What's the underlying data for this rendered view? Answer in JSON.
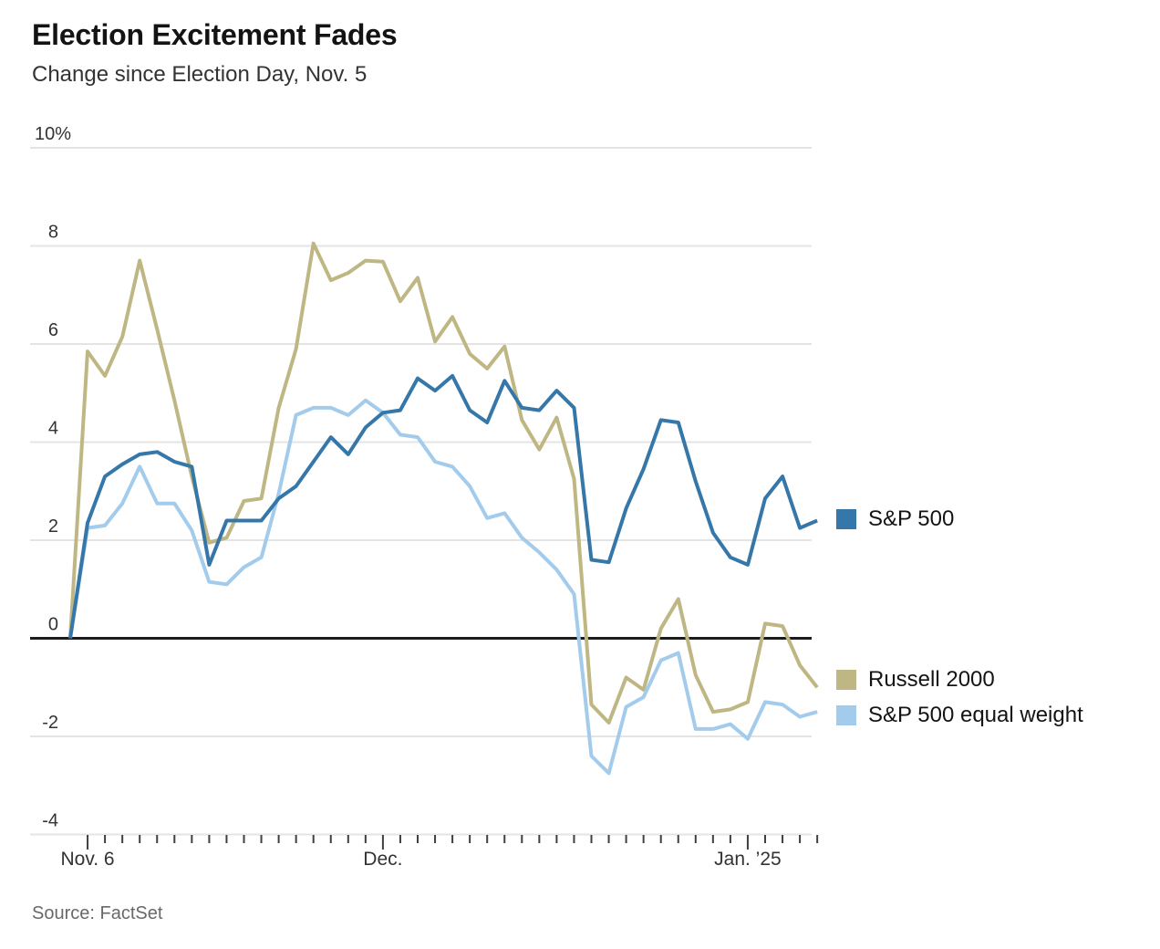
{
  "chart_data": {
    "type": "line",
    "title": "Election Excitement Fades",
    "subtitle": "Change since Election Day, Nov. 5",
    "source_note": "Source: FactSet",
    "x_dates": [
      "Nov. 5",
      "Nov. 6",
      "Nov. 7",
      "Nov. 8",
      "Nov. 11",
      "Nov. 12",
      "Nov. 13",
      "Nov. 14",
      "Nov. 15",
      "Nov. 18",
      "Nov. 19",
      "Nov. 20",
      "Nov. 21",
      "Nov. 22",
      "Nov. 25",
      "Nov. 26",
      "Nov. 27",
      "Nov. 29",
      "Dec. 2",
      "Dec. 3",
      "Dec. 4",
      "Dec. 5",
      "Dec. 6",
      "Dec. 9",
      "Dec. 10",
      "Dec. 11",
      "Dec. 12",
      "Dec. 13",
      "Dec. 16",
      "Dec. 17",
      "Dec. 18",
      "Dec. 19",
      "Dec. 20",
      "Dec. 23",
      "Dec. 24",
      "Dec. 26",
      "Dec. 27",
      "Dec. 30",
      "Dec. 31",
      "Jan. 2",
      "Jan. 3",
      "Jan. 6",
      "Jan. 7",
      "Jan. 8"
    ],
    "series": [
      {
        "name": "S&P 500",
        "color": "#3577A8",
        "values": [
          0,
          2.35,
          3.3,
          3.55,
          3.75,
          3.8,
          3.6,
          3.5,
          1.5,
          2.4,
          2.4,
          2.4,
          2.85,
          3.1,
          3.6,
          4.1,
          3.75,
          4.3,
          4.6,
          4.65,
          5.3,
          5.05,
          5.35,
          4.65,
          4.4,
          5.25,
          4.7,
          4.65,
          5.05,
          4.7,
          1.6,
          1.55,
          2.65,
          3.45,
          4.45,
          4.4,
          3.2,
          2.15,
          1.65,
          1.5,
          2.85,
          3.3,
          2.25,
          2.4
        ]
      },
      {
        "name": "Russell 2000",
        "color": "#BFB783",
        "values": [
          0,
          5.85,
          5.35,
          6.15,
          7.7,
          6.3,
          4.85,
          3.3,
          1.95,
          2.05,
          2.8,
          2.85,
          4.7,
          5.9,
          8.05,
          7.3,
          7.45,
          7.7,
          7.68,
          6.87,
          7.35,
          6.05,
          6.55,
          5.8,
          5.5,
          5.95,
          4.45,
          3.85,
          4.5,
          3.25,
          -1.35,
          -1.72,
          -0.8,
          -1.05,
          0.2,
          0.8,
          -0.75,
          -1.5,
          -1.45,
          -1.3,
          0.3,
          0.25,
          -0.55,
          -1.0
        ]
      },
      {
        "name": "S&P 500 equal weight",
        "color": "#A2CBEC",
        "values": [
          0,
          2.25,
          2.3,
          2.75,
          3.5,
          2.75,
          2.75,
          2.2,
          1.15,
          1.1,
          1.45,
          1.65,
          2.95,
          4.55,
          4.7,
          4.7,
          4.55,
          4.85,
          4.6,
          4.15,
          4.1,
          3.6,
          3.5,
          3.1,
          2.45,
          2.55,
          2.05,
          1.75,
          1.4,
          0.9,
          -2.4,
          -2.75,
          -1.4,
          -1.2,
          -0.45,
          -0.3,
          -1.85,
          -1.85,
          -1.75,
          -2.05,
          -1.3,
          -1.35,
          -1.6,
          -1.5
        ]
      }
    ],
    "ylim": [
      -4,
      10
    ],
    "yticks": {
      "values": [
        10,
        8,
        6,
        4,
        2,
        0,
        -2,
        -4
      ],
      "labels": [
        "10%",
        "8",
        "6",
        "4",
        "2",
        "0",
        "-2",
        "-4"
      ]
    },
    "xticks": [
      {
        "date_index": 1,
        "label": "Nov. 6"
      },
      {
        "date_index": 18,
        "label": "Dec."
      },
      {
        "date_index": 39,
        "label": "Jan. ’25"
      }
    ],
    "grid": "horizontal",
    "zero_baseline": true,
    "legend_position": "right"
  }
}
